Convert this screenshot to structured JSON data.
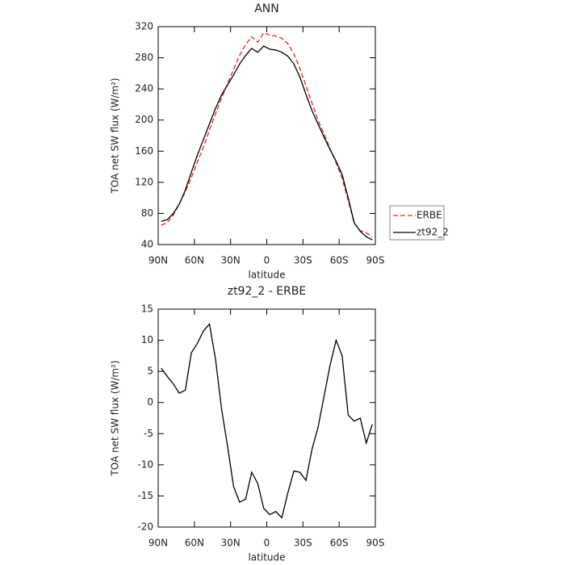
{
  "chart_data": [
    {
      "type": "line",
      "title": "ANN",
      "xlabel": "latitude",
      "ylabel": "TOA net SW flux (W/m²)",
      "x": [
        87.5,
        82.5,
        77.5,
        72.5,
        67.5,
        62.5,
        57.5,
        52.5,
        47.5,
        42.5,
        37.5,
        32.5,
        27.5,
        22.5,
        17.5,
        12.5,
        7.5,
        2.5,
        -2.5,
        -7.5,
        -12.5,
        -17.5,
        -22.5,
        -27.5,
        -32.5,
        -37.5,
        -42.5,
        -47.5,
        -52.5,
        -57.5,
        -62.5,
        -67.5,
        -72.5,
        -77.5,
        -82.5,
        -87.5
      ],
      "series": [
        {
          "name": "ERBE",
          "color": "#e8202a",
          "dash": true,
          "values": [
            65,
            68,
            78,
            92,
            108,
            126,
            146,
            165,
            187,
            208,
            228,
            247,
            265,
            283,
            297,
            307,
            300,
            312,
            309,
            308,
            305,
            298,
            285,
            266,
            244,
            222,
            200,
            182,
            163,
            145,
            125,
            97,
            67,
            58,
            55,
            50
          ]
        },
        {
          "name": "zt92_2",
          "color": "#000000",
          "dash": false,
          "values": [
            70,
            72,
            80,
            92,
            110,
            133,
            155,
            175,
            195,
            215,
            232,
            245,
            258,
            272,
            283,
            292,
            287,
            295,
            291,
            290,
            287,
            282,
            272,
            255,
            233,
            212,
            195,
            178,
            162,
            147,
            130,
            100,
            68,
            57,
            50,
            46
          ]
        }
      ],
      "xlim": [
        90,
        -90
      ],
      "xticks": [
        {
          "value": 90,
          "label": "90N"
        },
        {
          "value": 60,
          "label": "60N"
        },
        {
          "value": 30,
          "label": "30N"
        },
        0,
        {
          "value": -30,
          "label": "30S"
        },
        {
          "value": -60,
          "label": "60S"
        },
        {
          "value": -90,
          "label": "90S"
        }
      ],
      "ylim": [
        40,
        320
      ],
      "yticks": [
        40,
        80,
        120,
        160,
        200,
        240,
        280,
        320
      ],
      "legend": "right"
    },
    {
      "type": "line",
      "title": "zt92_2 - ERBE",
      "xlabel": "latitude",
      "ylabel": "TOA net SW flux (W/m²)",
      "x": [
        87.5,
        82.5,
        77.5,
        72.5,
        67.5,
        62.5,
        57.5,
        52.5,
        47.5,
        42.5,
        37.5,
        32.5,
        27.5,
        22.5,
        17.5,
        12.5,
        7.5,
        2.5,
        -2.5,
        -7.5,
        -12.5,
        -17.5,
        -22.5,
        -27.5,
        -32.5,
        -37.5,
        -42.5,
        -47.5,
        -52.5,
        -57.5,
        -62.5,
        -67.5,
        -72.5,
        -77.5,
        -82.5,
        -87.5
      ],
      "values": [
        5.5,
        4.2,
        3,
        1.5,
        2,
        8,
        9.5,
        11.5,
        12.6,
        7,
        -1,
        -7,
        -13.5,
        -16,
        -15.5,
        -11.2,
        -13,
        -17,
        -18,
        -17.5,
        -18.5,
        -14.5,
        -11,
        -11.2,
        -12.5,
        -7.5,
        -4,
        1,
        6,
        10,
        7.5,
        -2,
        -3,
        -2.5,
        -6.5,
        -3.5
      ],
      "color": "#000000",
      "xlim": [
        90,
        -90
      ],
      "xticks": [
        {
          "value": 90,
          "label": "90N"
        },
        {
          "value": 60,
          "label": "60N"
        },
        {
          "value": 30,
          "label": "30N"
        },
        0,
        {
          "value": -30,
          "label": "30S"
        },
        {
          "value": -60,
          "label": "60S"
        },
        {
          "value": -90,
          "label": "90S"
        }
      ],
      "ylim": [
        -20,
        15
      ],
      "yticks": [
        -20,
        -15,
        -10,
        -5,
        0,
        5,
        10,
        15
      ]
    }
  ]
}
